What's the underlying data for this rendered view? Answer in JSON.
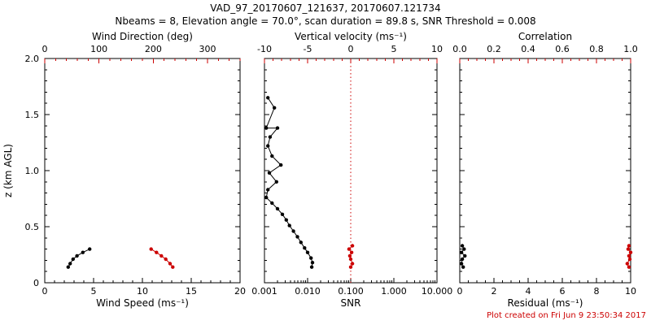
{
  "header": {
    "title": "VAD_97_20170607_121637, 20170607.121734",
    "subtitle": "Nbeams = 8, Elevation angle = 70.0°, scan duration = 89.8 s, SNR Threshold = 0.008"
  },
  "footer": {
    "created": "Plot created on Fri Jun  9 23:50:34 2017"
  },
  "colors": {
    "accent": "#cc0000",
    "foreground": "#000000",
    "background": "#ffffff"
  },
  "chart_data": {
    "type": "scatter",
    "y_axis": {
      "label": "z (km AGL)",
      "min": 0,
      "max": 2,
      "ticks": [
        0,
        0.5,
        1.0,
        1.5,
        2.0
      ],
      "tick_labels": [
        "0",
        "0.5",
        "1.0",
        "1.5",
        "2.0"
      ],
      "minor_step": 0.1
    },
    "panels": [
      {
        "id": "wind",
        "bottom_axis": {
          "label": "Wind Speed (ms⁻¹)",
          "min": 0,
          "max": 20,
          "scale": "linear",
          "ticks": [
            0,
            5,
            10,
            15,
            20
          ],
          "tick_labels": [
            "0",
            "5",
            "10",
            "15",
            "20"
          ],
          "minor_step": 1,
          "color": "#000000"
        },
        "top_axis": {
          "label": "Wind Direction (deg)",
          "min": 0,
          "max": 360,
          "scale": "linear",
          "ticks": [
            0,
            100,
            200,
            300
          ],
          "tick_labels": [
            "0",
            "100",
            "200",
            "300"
          ],
          "minor_step": 20,
          "color": "#cc0000"
        },
        "series": [
          {
            "name": "wind-speed",
            "axis": "bottom",
            "color": "#000000",
            "points": [
              [
                2.4,
                0.14
              ],
              [
                2.6,
                0.17
              ],
              [
                2.9,
                0.21
              ],
              [
                3.3,
                0.24
              ],
              [
                3.9,
                0.27
              ],
              [
                4.6,
                0.3
              ]
            ]
          },
          {
            "name": "wind-direction",
            "axis": "top",
            "color": "#cc0000",
            "points": [
              [
                196,
                0.3
              ],
              [
                206,
                0.27
              ],
              [
                215,
                0.24
              ],
              [
                223,
                0.21
              ],
              [
                231,
                0.17
              ],
              [
                236,
                0.14
              ]
            ]
          }
        ]
      },
      {
        "id": "snr",
        "bottom_axis": {
          "label": "SNR",
          "min": 0.001,
          "max": 10,
          "scale": "log",
          "ticks": [
            0.001,
            0.01,
            0.1,
            1,
            10
          ],
          "tick_labels": [
            "0.001",
            "0.010",
            "0.100",
            "1.000",
            "10.000"
          ],
          "color": "#000000"
        },
        "top_axis": {
          "label": "Vertical velocity (ms⁻¹)",
          "min": -10,
          "max": 10,
          "scale": "linear",
          "ticks": [
            -10,
            -5,
            0,
            5,
            10
          ],
          "tick_labels": [
            "-10",
            "-5",
            "0",
            "5",
            "10"
          ],
          "minor_step": 1,
          "color": "#cc0000"
        },
        "ref_line": {
          "axis": "top",
          "value": 0,
          "style": "dotted",
          "color": "#cc0000"
        },
        "series": [
          {
            "name": "snr-profile",
            "axis": "bottom",
            "color": "#000000",
            "points": [
              [
                0.0012,
                1.65
              ],
              [
                0.0017,
                1.56
              ],
              [
                0.0011,
                1.38
              ],
              [
                0.002,
                1.38
              ],
              [
                0.00135,
                1.3
              ],
              [
                0.0012,
                1.22
              ],
              [
                0.0015,
                1.13
              ],
              [
                0.0024,
                1.05
              ],
              [
                0.0013,
                0.98
              ],
              [
                0.0019,
                0.9
              ],
              [
                0.0012,
                0.83
              ],
              [
                0.0011,
                0.76
              ],
              [
                0.0015,
                0.71
              ],
              [
                0.002,
                0.66
              ],
              [
                0.0026,
                0.61
              ],
              [
                0.0032,
                0.56
              ],
              [
                0.0038,
                0.51
              ],
              [
                0.0047,
                0.46
              ],
              [
                0.0058,
                0.41
              ],
              [
                0.007,
                0.36
              ],
              [
                0.0085,
                0.31
              ],
              [
                0.01,
                0.27
              ],
              [
                0.012,
                0.22
              ],
              [
                0.013,
                0.18
              ],
              [
                0.0125,
                0.14
              ]
            ]
          },
          {
            "name": "vertical-velocity",
            "axis": "top",
            "color": "#cc0000",
            "points": [
              [
                0.2,
                0.33
              ],
              [
                -0.2,
                0.3
              ],
              [
                0.1,
                0.27
              ],
              [
                -0.1,
                0.24
              ],
              [
                0.0,
                0.21
              ],
              [
                0.2,
                0.17
              ],
              [
                0.0,
                0.14
              ]
            ]
          }
        ]
      },
      {
        "id": "residual",
        "bottom_axis": {
          "label": "Residual (ms⁻¹)",
          "min": 0,
          "max": 10,
          "scale": "linear",
          "ticks": [
            0,
            2,
            4,
            6,
            8,
            10
          ],
          "tick_labels": [
            "0",
            "2",
            "4",
            "6",
            "8",
            "10"
          ],
          "minor_step": 0.5,
          "color": "#000000"
        },
        "top_axis": {
          "label": "Correlation",
          "min": 0,
          "max": 1,
          "scale": "linear",
          "ticks": [
            0,
            0.2,
            0.4,
            0.6,
            0.8,
            1.0
          ],
          "tick_labels": [
            "0.0",
            "0.2",
            "0.4",
            "0.6",
            "0.8",
            "1.0"
          ],
          "minor_step": 0.05,
          "color": "#cc0000"
        },
        "series": [
          {
            "name": "residual",
            "axis": "bottom",
            "color": "#000000",
            "points": [
              [
                0.15,
                0.33
              ],
              [
                0.25,
                0.3
              ],
              [
                0.1,
                0.27
              ],
              [
                0.3,
                0.24
              ],
              [
                0.15,
                0.21
              ],
              [
                0.1,
                0.17
              ],
              [
                0.2,
                0.14
              ]
            ]
          },
          {
            "name": "correlation",
            "axis": "top",
            "color": "#cc0000",
            "points": [
              [
                0.99,
                0.33
              ],
              [
                0.985,
                0.3
              ],
              [
                1.0,
                0.27
              ],
              [
                0.99,
                0.24
              ],
              [
                0.995,
                0.21
              ],
              [
                0.98,
                0.17
              ],
              [
                0.99,
                0.14
              ]
            ]
          }
        ]
      }
    ]
  }
}
